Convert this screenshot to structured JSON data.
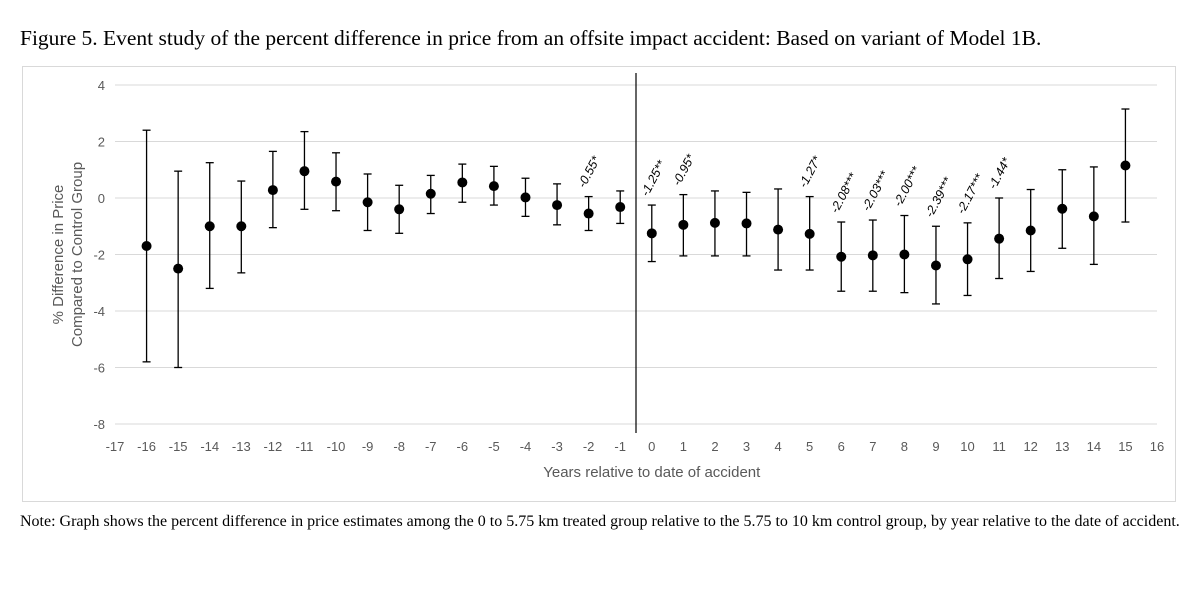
{
  "figure": {
    "title": "Figure 5. Event study of the percent difference in price from an offsite impact accident: Based on variant of Model 1B.",
    "note": "Note: Graph shows the percent difference in price estimates among the 0 to 5.75 km treated group relative to the 5.75 to 10 km control group, by year relative to the date of accident."
  },
  "chart_data": {
    "type": "scatter",
    "subtype": "point estimates with error bars (event study)",
    "xlabel": "Years relative to date of accident",
    "ylabel": [
      "% Difference in Price",
      "Compared to Control Group"
    ],
    "xlim": [
      -17,
      16
    ],
    "ylim": [
      -8,
      4
    ],
    "x_ticks": [
      -17,
      -16,
      -15,
      -14,
      -13,
      -12,
      -11,
      -10,
      -9,
      -8,
      -7,
      -6,
      -5,
      -4,
      -3,
      -2,
      -1,
      0,
      1,
      2,
      3,
      4,
      5,
      6,
      7,
      8,
      9,
      10,
      11,
      12,
      13,
      14,
      15,
      16
    ],
    "y_ticks": [
      4,
      2,
      0,
      -2,
      -4,
      -6,
      -8
    ],
    "grid": "horizontal",
    "vertical_reference_line_x": -0.5,
    "points": [
      {
        "x": -16,
        "y": -1.7,
        "lo": -5.8,
        "hi": 2.4
      },
      {
        "x": -15,
        "y": -2.5,
        "lo": -6.0,
        "hi": 0.95
      },
      {
        "x": -14,
        "y": -1.0,
        "lo": -3.2,
        "hi": 1.25
      },
      {
        "x": -13,
        "y": -1.0,
        "lo": -2.65,
        "hi": 0.6
      },
      {
        "x": -12,
        "y": 0.28,
        "lo": -1.05,
        "hi": 1.65
      },
      {
        "x": -11,
        "y": 0.95,
        "lo": -0.4,
        "hi": 2.35
      },
      {
        "x": -10,
        "y": 0.58,
        "lo": -0.45,
        "hi": 1.6
      },
      {
        "x": -9,
        "y": -0.15,
        "lo": -1.15,
        "hi": 0.85
      },
      {
        "x": -8,
        "y": -0.4,
        "lo": -1.25,
        "hi": 0.45
      },
      {
        "x": -7,
        "y": 0.15,
        "lo": -0.55,
        "hi": 0.8
      },
      {
        "x": -6,
        "y": 0.55,
        "lo": -0.15,
        "hi": 1.2
      },
      {
        "x": -5,
        "y": 0.42,
        "lo": -0.25,
        "hi": 1.12
      },
      {
        "x": -4,
        "y": 0.02,
        "lo": -0.65,
        "hi": 0.7
      },
      {
        "x": -3,
        "y": -0.25,
        "lo": -0.95,
        "hi": 0.5
      },
      {
        "x": -2,
        "y": -0.55,
        "lo": -1.15,
        "hi": 0.05
      },
      {
        "x": -1,
        "y": -0.32,
        "lo": -0.9,
        "hi": 0.25
      },
      {
        "x": 0,
        "y": -1.25,
        "lo": -2.25,
        "hi": -0.25
      },
      {
        "x": 1,
        "y": -0.95,
        "lo": -2.05,
        "hi": 0.12
      },
      {
        "x": 2,
        "y": -0.88,
        "lo": -2.05,
        "hi": 0.25
      },
      {
        "x": 3,
        "y": -0.9,
        "lo": -2.05,
        "hi": 0.2
      },
      {
        "x": 4,
        "y": -1.12,
        "lo": -2.55,
        "hi": 0.32
      },
      {
        "x": 5,
        "y": -1.27,
        "lo": -2.55,
        "hi": 0.05
      },
      {
        "x": 6,
        "y": -2.08,
        "lo": -3.3,
        "hi": -0.85
      },
      {
        "x": 7,
        "y": -2.03,
        "lo": -3.3,
        "hi": -0.78
      },
      {
        "x": 8,
        "y": -2.0,
        "lo": -3.35,
        "hi": -0.62
      },
      {
        "x": 9,
        "y": -2.39,
        "lo": -3.75,
        "hi": -1.0
      },
      {
        "x": 10,
        "y": -2.17,
        "lo": -3.45,
        "hi": -0.88
      },
      {
        "x": 11,
        "y": -1.44,
        "lo": -2.85,
        "hi": 0.0
      },
      {
        "x": 12,
        "y": -1.15,
        "lo": -2.6,
        "hi": 0.3
      },
      {
        "x": 13,
        "y": -0.38,
        "lo": -1.78,
        "hi": 1.0
      },
      {
        "x": 14,
        "y": -0.65,
        "lo": -2.35,
        "hi": 1.1
      },
      {
        "x": 15,
        "y": 1.15,
        "lo": -0.85,
        "hi": 3.15
      }
    ],
    "annotations": [
      {
        "x": -2,
        "text": "-0.55*"
      },
      {
        "x": 0,
        "text": "-1.25**"
      },
      {
        "x": 1,
        "text": "-0.95*"
      },
      {
        "x": 5,
        "text": "-1.27*"
      },
      {
        "x": 6,
        "text": "-2.08***"
      },
      {
        "x": 7,
        "text": "-2.03***"
      },
      {
        "x": 8,
        "text": "-2.00***"
      },
      {
        "x": 9,
        "text": "-2.39***"
      },
      {
        "x": 10,
        "text": "-2.17***"
      },
      {
        "x": 11,
        "text": "-1.44*"
      }
    ],
    "colors": {
      "marker": "#000000",
      "errorbar": "#000000",
      "grid": "#d9d9d9",
      "axis_text": "#595959",
      "reference_line": "#000000"
    }
  }
}
